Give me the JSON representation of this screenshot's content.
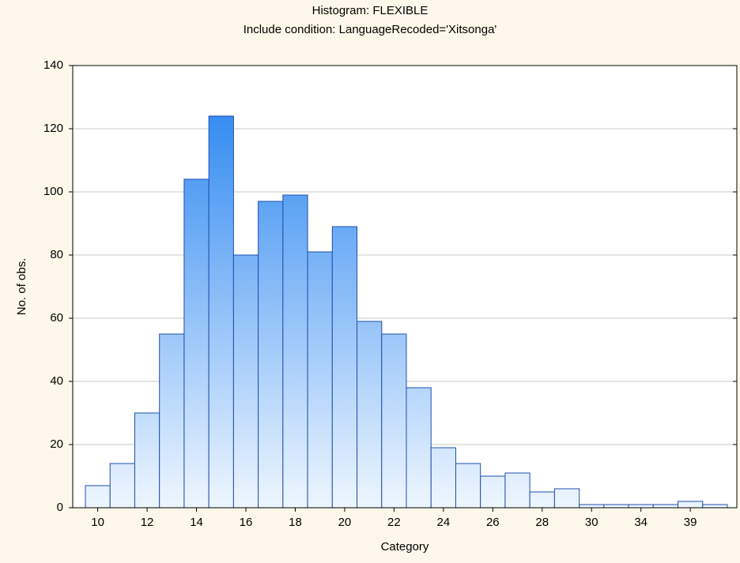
{
  "chart_data": {
    "type": "bar",
    "title": "Histogram: FLEXIBLE",
    "subtitle": "Include condition: LanguageRecoded='Xitsonga'",
    "x_label": "Category",
    "y_label": "No. of obs.",
    "categories": [
      "10",
      null,
      "12",
      null,
      "14",
      null,
      "16",
      null,
      "18",
      null,
      "20",
      null,
      "22",
      null,
      "24",
      null,
      "26",
      null,
      "28",
      null,
      "30",
      null,
      "34",
      null,
      "39",
      null
    ],
    "values": [
      7,
      14,
      30,
      55,
      104,
      124,
      80,
      97,
      99,
      81,
      89,
      59,
      55,
      38,
      19,
      14,
      10,
      11,
      5,
      6,
      1,
      1,
      1,
      1,
      2,
      1
    ],
    "color": "#1e7fef",
    "ylim": [
      0,
      140
    ],
    "yticks": [
      0,
      20,
      40,
      60,
      80,
      100,
      120,
      140
    ],
    "grid": true
  }
}
